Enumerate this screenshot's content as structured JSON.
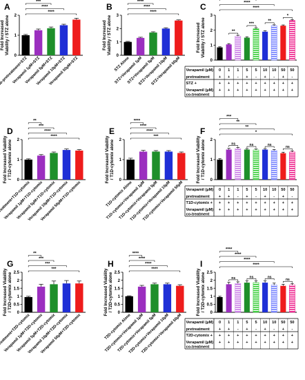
{
  "colors": {
    "black": "#000000",
    "purple": "#9b2fbf",
    "green": "#1e8f2a",
    "blue": "#1f2fd6",
    "red": "#ee1c1c",
    "pink": "#ee1c8a",
    "lightpurple": "#c879e6",
    "lightblue": "#6f7cff",
    "brightgreen": "#33cc33"
  },
  "chart_data": [
    {
      "id": "A",
      "type": "bar",
      "panel_label": "A",
      "ylabel": "Fold Increased\nViability / STZ alone",
      "ylim": [
        0,
        2
      ],
      "yticks": [
        0,
        1,
        2
      ],
      "categories": [
        "No-pretreatment+STZ",
        "Verapamil 1µM+STZ",
        "Verapamil 5µM+STZ",
        "Verapamil 10µM+STZ",
        "Verapamil 50µM+STZ"
      ],
      "values": [
        1.0,
        1.25,
        1.35,
        1.5,
        1.78
      ],
      "errors": [
        0.04,
        0.06,
        0.06,
        0.05,
        0.07
      ],
      "bar_colors": [
        "black",
        "purple",
        "green",
        "blue",
        "red"
      ],
      "patterns": [
        "solid",
        "solid",
        "solid",
        "solid",
        "solid"
      ],
      "significance": [
        {
          "from": 0,
          "to": 1,
          "label": "*"
        },
        {
          "from": 0,
          "to": 2,
          "label": "***"
        },
        {
          "from": 0,
          "to": 3,
          "label": "****"
        },
        {
          "from": 0,
          "to": 4,
          "label": "****"
        }
      ]
    },
    {
      "id": "B",
      "type": "bar",
      "panel_label": "B",
      "ylabel": "Fold Increased\nViability / STZ alone",
      "ylim": [
        0,
        3
      ],
      "yticks": [
        0,
        1,
        2,
        3
      ],
      "categories": [
        "STZ Alone",
        "STZ+Verapamil 1µM",
        "STZ+Verapamil 5µM",
        "STZ+Verapamil 10µM",
        "STZ+Verapamil 50µM"
      ],
      "values": [
        1.0,
        1.3,
        1.7,
        2.0,
        2.6
      ],
      "errors": [
        0.04,
        0.05,
        0.06,
        0.06,
        0.05
      ],
      "bar_colors": [
        "black",
        "purple",
        "green",
        "blue",
        "red"
      ],
      "patterns": [
        "solid",
        "solid",
        "solid",
        "solid",
        "solid"
      ],
      "significance": [
        {
          "from": 0,
          "to": 1,
          "label": "*"
        },
        {
          "from": 0,
          "to": 2,
          "label": "****"
        },
        {
          "from": 0,
          "to": 3,
          "label": "****"
        },
        {
          "from": 0,
          "to": 4,
          "label": "****"
        }
      ]
    },
    {
      "id": "C",
      "type": "bar",
      "panel_label": "C",
      "ylabel": "Fold Increased\nViability / STZ alone",
      "ylim": [
        0,
        3
      ],
      "yticks": [
        0,
        1,
        2,
        3
      ],
      "categories": [
        "0",
        "1",
        "1",
        "5",
        "5",
        "10",
        "10",
        "50",
        "50"
      ],
      "values": [
        0.85,
        1.05,
        1.6,
        1.5,
        2.1,
        1.9,
        2.3,
        2.3,
        2.65
      ],
      "errors": [
        0.04,
        0.05,
        0.06,
        0.06,
        0.07,
        0.06,
        0.06,
        0.05,
        0.06
      ],
      "bar_colors": [
        "black",
        "purple",
        "lightpurple",
        "green",
        "brightgreen",
        "blue",
        "lightblue",
        "red",
        "pink"
      ],
      "patterns": [
        "solid",
        "solid",
        "stripe",
        "solid",
        "stripe",
        "solid",
        "stripe",
        "solid",
        "stripe"
      ],
      "significance": [
        {
          "from": 1,
          "to": 2,
          "label": "**"
        },
        {
          "from": 3,
          "to": 4,
          "label": "***"
        },
        {
          "from": 5,
          "to": 6,
          "label": "**"
        },
        {
          "from": 7,
          "to": 8,
          "label": "*"
        },
        {
          "from": 0,
          "to": 2,
          "label": "****"
        },
        {
          "from": 0,
          "to": 4,
          "label": "****"
        },
        {
          "from": 0,
          "to": 6,
          "label": "****"
        },
        {
          "from": 0,
          "to": 8,
          "label": "****"
        }
      ],
      "table": {
        "rows": [
          {
            "label": "Verapamil (µM)",
            "cells": [
              "0",
              "1",
              "1",
              "5",
              "5",
              "10",
              "10",
              "50",
              "50"
            ]
          },
          {
            "label": "pretreatment",
            "cells": [
              "+",
              "+",
              "-",
              "+",
              "-",
              "+",
              "-",
              "+",
              "-"
            ]
          },
          {
            "label": "STZ +",
            "cells": [
              "+",
              "+",
              "+",
              "+",
              "+",
              "+",
              "+",
              "+",
              "+"
            ]
          },
          {
            "label": "Verapamil (µM) co-treatment",
            "cells": [
              "+",
              "+",
              "+",
              "+",
              "+",
              "+",
              "+",
              "+",
              "+"
            ]
          }
        ]
      }
    },
    {
      "id": "D",
      "type": "bar",
      "panel_label": "D",
      "ylabel": "Fold Increased Viability\n/ T1D-cytomix alone",
      "ylim": [
        0,
        2
      ],
      "yticks": [
        0,
        1,
        2
      ],
      "categories": [
        "No-pretreatment+T1D-cytomix",
        "Verapamil 1µM+T1D-cytomix",
        "Verapamil 5µM+T1D-cytomix",
        "Verapamil 10µM+T1D-cytomix",
        "Verapamil 50µM+T1D-cytomix"
      ],
      "values": [
        1.0,
        1.2,
        1.33,
        1.48,
        1.45
      ],
      "errors": [
        0.04,
        0.05,
        0.05,
        0.05,
        0.05
      ],
      "bar_colors": [
        "black",
        "purple",
        "green",
        "blue",
        "red"
      ],
      "patterns": [
        "solid",
        "solid",
        "solid",
        "solid",
        "solid"
      ],
      "significance": [
        {
          "from": 0,
          "to": 1,
          "label": "**"
        },
        {
          "from": 0,
          "to": 2,
          "label": "***"
        },
        {
          "from": 0,
          "to": 3,
          "label": "****"
        },
        {
          "from": 0,
          "to": 4,
          "label": "****"
        }
      ]
    },
    {
      "id": "E",
      "type": "bar",
      "panel_label": "E",
      "ylabel": "Fold Increased Viability\n/ T1D-cytomix alone",
      "ylim": [
        0,
        2
      ],
      "yticks": [
        0,
        1,
        2
      ],
      "categories": [
        "T1D-cytomix Alone",
        "T1D-cytomix+Verapamil 1µM",
        "T1D-cytomix+Verapamil 5µM",
        "T1D-cytomix+Verapamil 10µM",
        "T1D-cytomix+Verapamil 50µM"
      ],
      "values": [
        1.0,
        1.4,
        1.4,
        1.4,
        1.33
      ],
      "errors": [
        0.07,
        0.06,
        0.05,
        0.05,
        0.05
      ],
      "bar_colors": [
        "black",
        "purple",
        "green",
        "blue",
        "red"
      ],
      "patterns": [
        "solid",
        "solid",
        "solid",
        "solid",
        "solid"
      ],
      "significance": [
        {
          "from": 0,
          "to": 1,
          "label": "****"
        },
        {
          "from": 0,
          "to": 2,
          "label": "****"
        },
        {
          "from": 0,
          "to": 3,
          "label": "****"
        },
        {
          "from": 0,
          "to": 4,
          "label": "***"
        }
      ]
    },
    {
      "id": "F",
      "type": "bar",
      "panel_label": "F",
      "ylabel": "Fold Increased Viability\n/ T1D-cytomix alone",
      "ylim": [
        0,
        2
      ],
      "yticks": [
        0,
        1,
        2
      ],
      "categories": [
        "0",
        "1",
        "1",
        "5",
        "5",
        "10",
        "10",
        "50",
        "50"
      ],
      "values": [
        1.0,
        1.5,
        1.55,
        1.5,
        1.48,
        1.5,
        1.45,
        1.32,
        1.38
      ],
      "errors": [
        0.05,
        0.06,
        0.05,
        0.05,
        0.05,
        0.05,
        0.05,
        0.05,
        0.06
      ],
      "bar_colors": [
        "black",
        "purple",
        "lightpurple",
        "green",
        "brightgreen",
        "blue",
        "lightblue",
        "red",
        "pink"
      ],
      "patterns": [
        "solid",
        "solid",
        "stripe",
        "solid",
        "stripe",
        "solid",
        "stripe",
        "solid",
        "stripe"
      ],
      "significance": [
        {
          "from": 1,
          "to": 2,
          "label": "ns"
        },
        {
          "from": 3,
          "to": 4,
          "label": "ns"
        },
        {
          "from": 5,
          "to": 6,
          "label": "ns"
        },
        {
          "from": 7,
          "to": 8,
          "label": "ns"
        },
        {
          "from": 0,
          "to": 2,
          "label": "***"
        },
        {
          "from": 0,
          "to": 4,
          "label": "**"
        },
        {
          "from": 0,
          "to": 6,
          "label": "**"
        },
        {
          "from": 0,
          "to": 8,
          "label": "*"
        }
      ],
      "table": {
        "rows": [
          {
            "label": "Verapamil (µM)",
            "cells": [
              "0",
              "1",
              "1",
              "5",
              "5",
              "10",
              "10",
              "50",
              "50"
            ]
          },
          {
            "label": "pretreatment",
            "cells": [
              "+",
              "+",
              "-",
              "+",
              "-",
              "+",
              "-",
              "+",
              "-"
            ]
          },
          {
            "label": "T1D-cytomix +",
            "cells": [
              "+",
              "+",
              "+",
              "+",
              "+",
              "+",
              "+",
              "+",
              "+"
            ]
          },
          {
            "label": "Verapamil (µM) co-treatment",
            "cells": [
              "+",
              "+",
              "+",
              "+",
              "+",
              "+",
              "+",
              "+",
              "+"
            ]
          }
        ]
      }
    },
    {
      "id": "G",
      "type": "bar",
      "panel_label": "G",
      "ylabel": "Fold Increased Viability\n/ T2D-cytomix alone",
      "ylim": [
        0,
        2.5
      ],
      "yticks": [
        0,
        0.5,
        1,
        1.5,
        2,
        2.5
      ],
      "categories": [
        "No-pretreatment+T2D-cytomix",
        "Verapamil 1µM+T2D-cytomix",
        "Verapamil 5µM+T2D-cytomix",
        "Verapamil 10µM+T2D-cytomix",
        "Verapamil 50µM+T2D-cytomix"
      ],
      "values": [
        0.95,
        1.6,
        1.75,
        1.8,
        1.8
      ],
      "errors": [
        0.05,
        0.15,
        0.2,
        0.18,
        0.15
      ],
      "bar_colors": [
        "black",
        "purple",
        "green",
        "blue",
        "red"
      ],
      "patterns": [
        "solid",
        "solid",
        "solid",
        "solid",
        "solid"
      ],
      "significance": [
        {
          "from": 0,
          "to": 1,
          "label": "**"
        },
        {
          "from": 0,
          "to": 2,
          "label": "***"
        },
        {
          "from": 0,
          "to": 3,
          "label": "***"
        },
        {
          "from": 0,
          "to": 4,
          "label": "***"
        }
      ]
    },
    {
      "id": "H",
      "type": "bar",
      "panel_label": "H",
      "ylabel": "Fold Increased Viability\n/ T2D-cytomix alone",
      "ylim": [
        0,
        2.5
      ],
      "yticks": [
        0,
        0.5,
        1,
        1.5,
        2,
        2.5
      ],
      "categories": [
        "T2D-cytomix Alone",
        "T2D-cytomix+Verapamil 1µM",
        "T2D-cytomix+Verapamil 5µM",
        "T2D-cytomix+Verapamil 10µM",
        "T2D-cytomix+Verapamil 50µM"
      ],
      "values": [
        1.0,
        1.6,
        1.75,
        1.75,
        1.65
      ],
      "errors": [
        0.03,
        0.08,
        0.07,
        0.07,
        0.07
      ],
      "bar_colors": [
        "black",
        "purple",
        "green",
        "blue",
        "red"
      ],
      "patterns": [
        "solid",
        "solid",
        "solid",
        "solid",
        "solid"
      ],
      "significance": [
        {
          "from": 0,
          "to": 1,
          "label": "****"
        },
        {
          "from": 0,
          "to": 2,
          "label": "****"
        },
        {
          "from": 0,
          "to": 3,
          "label": "****"
        },
        {
          "from": 0,
          "to": 4,
          "label": "****"
        }
      ]
    },
    {
      "id": "I",
      "type": "bar",
      "panel_label": "I",
      "ylabel": "Fold Increased Viability\n/ T2D-cytomix alone",
      "ylim": [
        0,
        2.5
      ],
      "yticks": [
        0,
        0.5,
        1,
        1.5,
        2,
        2.5
      ],
      "categories": [
        "0",
        "1",
        "1",
        "5",
        "5",
        "10",
        "10",
        "50",
        "50"
      ],
      "values": [
        0.95,
        1.75,
        1.8,
        1.85,
        1.85,
        1.85,
        1.7,
        1.65,
        1.7
      ],
      "errors": [
        0.05,
        0.12,
        0.1,
        0.12,
        0.12,
        0.12,
        0.12,
        0.1,
        0.1
      ],
      "bar_colors": [
        "black",
        "purple",
        "lightpurple",
        "green",
        "brightgreen",
        "blue",
        "lightblue",
        "red",
        "pink"
      ],
      "patterns": [
        "solid",
        "solid",
        "stripe",
        "solid",
        "stripe",
        "solid",
        "stripe",
        "solid",
        "stripe"
      ],
      "significance": [
        {
          "from": 1,
          "to": 2,
          "label": "ns"
        },
        {
          "from": 3,
          "to": 4,
          "label": "ns"
        },
        {
          "from": 5,
          "to": 6,
          "label": "ns"
        },
        {
          "from": 7,
          "to": 8,
          "label": "ns"
        },
        {
          "from": 0,
          "to": 2,
          "label": "****"
        },
        {
          "from": 0,
          "to": 4,
          "label": "****"
        },
        {
          "from": 0,
          "to": 6,
          "label": "****"
        },
        {
          "from": 0,
          "to": 8,
          "label": "****"
        }
      ],
      "table": {
        "rows": [
          {
            "label": "Verapamil (µM)",
            "cells": [
              "0",
              "1",
              "1",
              "5",
              "5",
              "10",
              "10",
              "50",
              "50"
            ]
          },
          {
            "label": "pretreatment",
            "cells": [
              "+",
              "+",
              "-",
              "+",
              "-",
              "+",
              "-",
              "+",
              "-"
            ]
          },
          {
            "label": "T2D-cytomix +",
            "cells": [
              "+",
              "+",
              "+",
              "+",
              "+",
              "+",
              "+",
              "+",
              "+"
            ]
          },
          {
            "label": "Verapamil (µM) co-treatment",
            "cells": [
              "+",
              "+",
              "+",
              "+",
              "+",
              "+",
              "+",
              "+",
              "+"
            ]
          }
        ]
      }
    }
  ]
}
